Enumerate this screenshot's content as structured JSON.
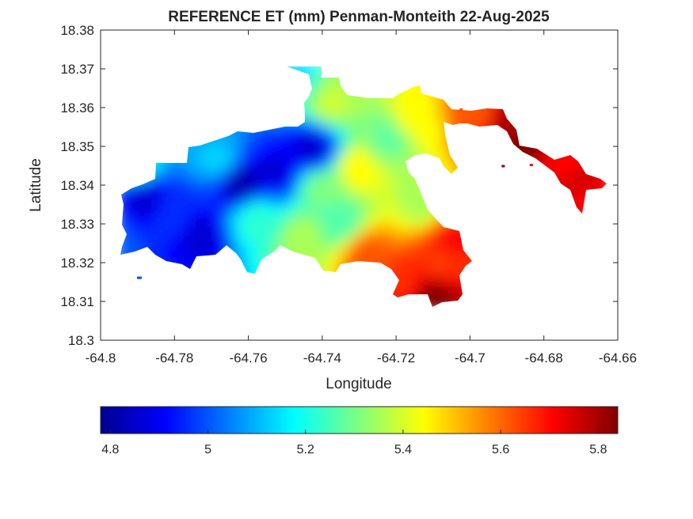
{
  "chart_data": {
    "type": "heatmap",
    "subtype": "filled-contour map",
    "title": "REFERENCE ET (mm) Penman-Monteith 22-Aug-2025",
    "xlabel": "Longitude",
    "ylabel": "Latitude",
    "xlim": [
      -64.8,
      -64.66
    ],
    "ylim": [
      18.3,
      18.38
    ],
    "xticks": [
      "-64.8",
      "-64.78",
      "-64.76",
      "-64.74",
      "-64.72",
      "-64.7",
      "-64.68",
      "-64.66"
    ],
    "yticks": [
      "18.3",
      "18.31",
      "18.32",
      "18.33",
      "18.34",
      "18.35",
      "18.36",
      "18.37",
      "18.38"
    ],
    "colormap": "jet",
    "clim": [
      4.78,
      5.84
    ],
    "colorbar": {
      "orientation": "horizontal",
      "placement": "below",
      "ticks": [
        "4.8",
        "5",
        "5.2",
        "5.4",
        "5.6",
        "5.8"
      ]
    },
    "grid": false,
    "legend": "none",
    "field_points": [
      {
        "lon": -64.788,
        "lat": 18.337,
        "v": 4.85
      },
      {
        "lon": -64.78,
        "lat": 18.332,
        "v": 4.96
      },
      {
        "lon": -64.773,
        "lat": 18.327,
        "v": 4.87
      },
      {
        "lon": -64.762,
        "lat": 18.34,
        "v": 4.82
      },
      {
        "lon": -64.752,
        "lat": 18.343,
        "v": 4.88
      },
      {
        "lon": -64.742,
        "lat": 18.349,
        "v": 4.86
      },
      {
        "lon": -64.768,
        "lat": 18.346,
        "v": 5.12
      },
      {
        "lon": -64.758,
        "lat": 18.331,
        "v": 5.22
      },
      {
        "lon": -64.74,
        "lat": 18.339,
        "v": 5.3
      },
      {
        "lon": -64.745,
        "lat": 18.326,
        "v": 5.35
      },
      {
        "lon": -64.737,
        "lat": 18.361,
        "v": 5.38
      },
      {
        "lon": -64.73,
        "lat": 18.344,
        "v": 5.45
      },
      {
        "lon": -64.722,
        "lat": 18.352,
        "v": 5.28
      },
      {
        "lon": -64.715,
        "lat": 18.357,
        "v": 5.45
      },
      {
        "lon": -64.712,
        "lat": 18.335,
        "v": 5.35
      },
      {
        "lon": -64.728,
        "lat": 18.322,
        "v": 5.62
      },
      {
        "lon": -64.708,
        "lat": 18.32,
        "v": 5.64
      },
      {
        "lon": -64.705,
        "lat": 18.326,
        "v": 5.7
      },
      {
        "lon": -64.71,
        "lat": 18.311,
        "v": 5.84
      },
      {
        "lon": -64.717,
        "lat": 18.314,
        "v": 5.68
      },
      {
        "lon": -64.698,
        "lat": 18.358,
        "v": 5.62
      },
      {
        "lon": -64.69,
        "lat": 18.356,
        "v": 5.8
      },
      {
        "lon": -64.685,
        "lat": 18.35,
        "v": 5.84
      },
      {
        "lon": -64.676,
        "lat": 18.345,
        "v": 5.72
      },
      {
        "lon": -64.672,
        "lat": 18.339,
        "v": 5.74
      },
      {
        "lon": -64.67,
        "lat": 18.335,
        "v": 5.72
      },
      {
        "lon": -64.748,
        "lat": 18.369,
        "v": 5.15
      },
      {
        "lon": -64.797,
        "lat": 18.325,
        "v": 5.0
      },
      {
        "lon": -64.79,
        "lat": 18.344,
        "v": 5.2
      },
      {
        "lon": -64.735,
        "lat": 18.33,
        "v": 5.25
      }
    ]
  }
}
